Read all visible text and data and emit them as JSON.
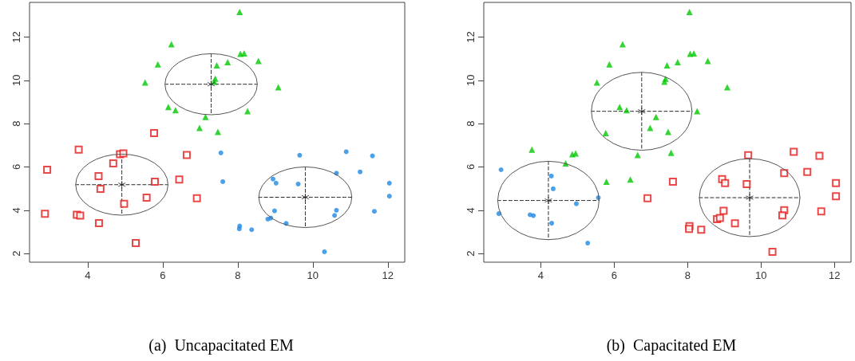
{
  "chart_data": [
    {
      "type": "scatter",
      "title": "(a)  Uncapacitated EM",
      "xlim": [
        2.45,
        12.45
      ],
      "ylim": [
        1.6,
        13.6
      ],
      "xticks": [
        4,
        6,
        8,
        10,
        12
      ],
      "yticks": [
        2,
        4,
        6,
        8,
        10,
        12
      ],
      "series": [
        {
          "type": "scatter",
          "color": "#e31a1c",
          "marker": "square",
          "x": [
            2.92,
            2.86,
            3.76,
            3.71,
            3.8,
            4.3,
            4.29,
            4.34,
            4.68,
            4.86,
            4.95,
            4.97,
            5.28,
            5.57,
            5.77,
            5.79,
            6.44,
            6.64,
            6.91
          ],
          "values": [
            5.87,
            3.84,
            6.8,
            3.79,
            3.75,
            3.4,
            5.58,
            4.99,
            6.16,
            6.59,
            6.62,
            4.3,
            2.48,
            4.58,
            7.56,
            5.32,
            5.42,
            6.55,
            4.55
          ]
        },
        {
          "type": "scatter",
          "color": "#00c800",
          "marker": "triangle",
          "x": [
            5.53,
            5.87,
            6.23,
            6.15,
            6.34,
            6.98,
            7.14,
            8.05,
            8.07,
            8.17,
            7.44,
            7.73,
            8.55,
            7.4,
            7.37,
            9.08,
            8.26,
            7.47
          ],
          "values": [
            9.9,
            10.74,
            11.67,
            8.77,
            8.62,
            7.8,
            8.31,
            13.16,
            11.23,
            11.24,
            10.69,
            10.84,
            10.89,
            10.08,
            9.94,
            9.68,
            8.58,
            7.62
          ]
        },
        {
          "type": "scatter",
          "color": "#1e88e5",
          "marker": "circle",
          "x": [
            7.55,
            7.6,
            8.05,
            8.04,
            8.37,
            8.8,
            8.88,
            8.98,
            8.94,
            9.02,
            9.29,
            9.61,
            9.65,
            10.31,
            10.63,
            10.63,
            10.58,
            10.89,
            11.26,
            11.59,
            11.64,
            12.04,
            12.04
          ],
          "values": [
            6.65,
            5.32,
            3.27,
            3.14,
            3.1,
            3.59,
            3.64,
            3.97,
            5.44,
            5.25,
            3.39,
            5.21,
            6.54,
            2.08,
            5.71,
            4.0,
            3.76,
            6.7,
            5.77,
            6.51,
            3.95,
            5.25,
            4.65
          ]
        },
        {
          "type": "line",
          "color": "#222222",
          "line_style": "dashed",
          "x": [
            3.68,
            6.14
          ],
          "values": [
            5.18,
            5.18
          ]
        },
        {
          "type": "line",
          "color": "#222222",
          "line_style": "dashed",
          "x": [
            4.91,
            4.91
          ],
          "values": [
            6.59,
            3.77
          ]
        },
        {
          "type": "line",
          "color": "#222222",
          "line_style": "dashed",
          "x": [
            6.06,
            8.52
          ],
          "values": [
            9.82,
            9.82
          ]
        },
        {
          "type": "line",
          "color": "#222222",
          "line_style": "dashed",
          "x": [
            7.29,
            7.29
          ],
          "values": [
            11.23,
            8.41
          ]
        },
        {
          "type": "line",
          "color": "#222222",
          "line_style": "dashed",
          "x": [
            8.56,
            11.04
          ],
          "values": [
            4.6,
            4.6
          ]
        },
        {
          "type": "line",
          "color": "#222222",
          "line_style": "dashed",
          "x": [
            9.8,
            9.8
          ],
          "values": [
            6.0,
            3.2
          ]
        },
        {
          "type": "scatter",
          "color": "#222222",
          "marker": "cross",
          "x": [
            4.91,
            7.29,
            9.8
          ],
          "values": [
            5.18,
            9.82,
            4.6
          ]
        }
      ]
    },
    {
      "type": "scatter",
      "title": "(b)  Capacitated EM",
      "xlim": [
        2.45,
        12.45
      ],
      "ylim": [
        1.6,
        13.6
      ],
      "xticks": [
        4,
        6,
        8,
        10,
        12
      ],
      "yticks": [
        2,
        4,
        6,
        8,
        10,
        12
      ],
      "series": [
        {
          "type": "scatter",
          "color": "#e31a1c",
          "marker": "square",
          "x": [
            6.91,
            7.6,
            8.05,
            8.04,
            8.37,
            8.8,
            8.88,
            8.98,
            8.94,
            9.02,
            9.29,
            9.61,
            9.65,
            10.31,
            10.63,
            10.63,
            10.58,
            10.89,
            11.26,
            11.59,
            11.64,
            12.04,
            12.04
          ],
          "values": [
            4.55,
            5.32,
            3.27,
            3.14,
            3.1,
            3.59,
            3.64,
            3.97,
            5.44,
            5.25,
            3.39,
            5.21,
            6.54,
            2.08,
            5.71,
            4.0,
            3.76,
            6.7,
            5.77,
            6.51,
            3.95,
            5.25,
            4.65
          ]
        },
        {
          "type": "scatter",
          "color": "#00c800",
          "marker": "triangle",
          "x": [
            5.53,
            5.87,
            6.23,
            6.15,
            6.34,
            6.98,
            7.14,
            8.05,
            8.07,
            8.17,
            7.44,
            7.73,
            8.55,
            7.4,
            7.37,
            9.08,
            8.26,
            7.47,
            3.76,
            4.68,
            4.86,
            4.95,
            5.77,
            5.79,
            6.44,
            6.64,
            7.55
          ],
          "values": [
            9.9,
            10.74,
            11.67,
            8.77,
            8.62,
            7.8,
            8.31,
            13.16,
            11.23,
            11.24,
            10.69,
            10.84,
            10.89,
            10.08,
            9.94,
            9.68,
            8.58,
            7.62,
            6.8,
            6.16,
            6.59,
            6.62,
            7.56,
            5.32,
            5.42,
            6.55,
            6.65
          ]
        },
        {
          "type": "scatter",
          "color": "#1e88e5",
          "marker": "circle",
          "x": [
            2.92,
            2.86,
            3.71,
            3.8,
            4.29,
            4.34,
            4.3,
            4.97,
            5.28,
            5.57
          ],
          "values": [
            5.87,
            3.84,
            3.79,
            3.75,
            5.58,
            4.99,
            3.4,
            4.3,
            2.48,
            4.58
          ]
        },
        {
          "type": "line",
          "color": "#222222",
          "line_style": "dashed",
          "x": [
            2.83,
            5.59
          ],
          "values": [
            4.45,
            4.45
          ]
        },
        {
          "type": "line",
          "color": "#222222",
          "line_style": "dashed",
          "x": [
            4.21,
            4.21
          ],
          "values": [
            6.26,
            2.64
          ]
        },
        {
          "type": "line",
          "color": "#222222",
          "line_style": "dashed",
          "x": [
            5.38,
            8.12
          ],
          "values": [
            8.57,
            8.57
          ]
        },
        {
          "type": "line",
          "color": "#222222",
          "line_style": "dashed",
          "x": [
            6.75,
            6.75
          ],
          "values": [
            10.37,
            6.77
          ]
        },
        {
          "type": "line",
          "color": "#222222",
          "line_style": "dashed",
          "x": [
            8.32,
            11.06
          ],
          "values": [
            4.58,
            4.58
          ]
        },
        {
          "type": "line",
          "color": "#222222",
          "line_style": "dashed",
          "x": [
            9.69,
            9.69
          ],
          "values": [
            6.38,
            2.78
          ]
        },
        {
          "type": "scatter",
          "color": "#222222",
          "marker": "cross",
          "x": [
            4.21,
            6.75,
            9.69
          ],
          "values": [
            4.45,
            8.57,
            4.58
          ]
        }
      ]
    }
  ]
}
